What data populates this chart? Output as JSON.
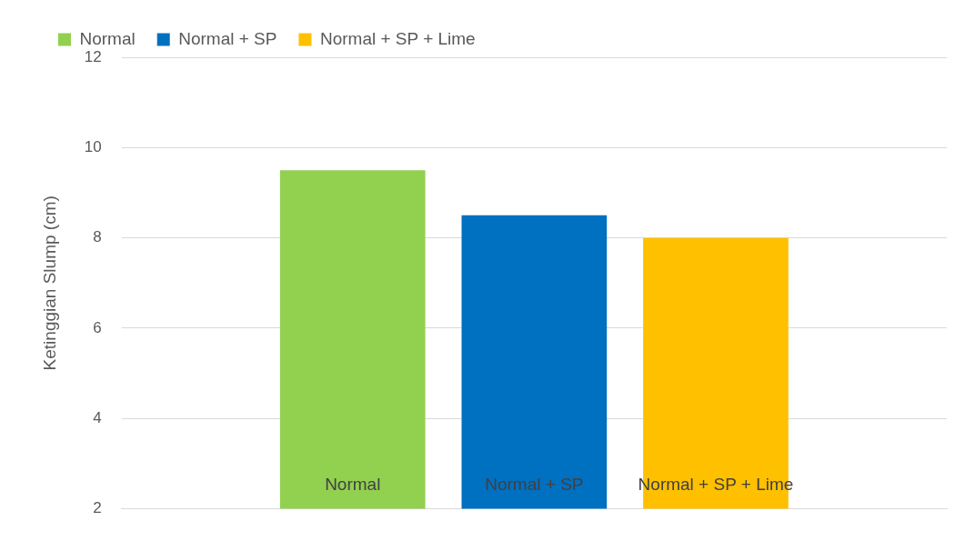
{
  "chart_data": {
    "type": "bar",
    "ylabel": "Ketinggian Slump (cm)",
    "categories": [
      null
    ],
    "series": [
      {
        "name": "Normal",
        "color": "#92d050",
        "values": [
          9.5
        ]
      },
      {
        "name": "Normal + SP",
        "color": "#0070c0",
        "values": [
          8.5
        ]
      },
      {
        "name": "Normal + SP + Lime",
        "color": "#ffc000",
        "values": [
          8
        ]
      }
    ],
    "ylim": [
      2,
      12
    ],
    "yticks": [
      2,
      4,
      6,
      8,
      10,
      12
    ],
    "grid": "y",
    "legend": "top left"
  }
}
